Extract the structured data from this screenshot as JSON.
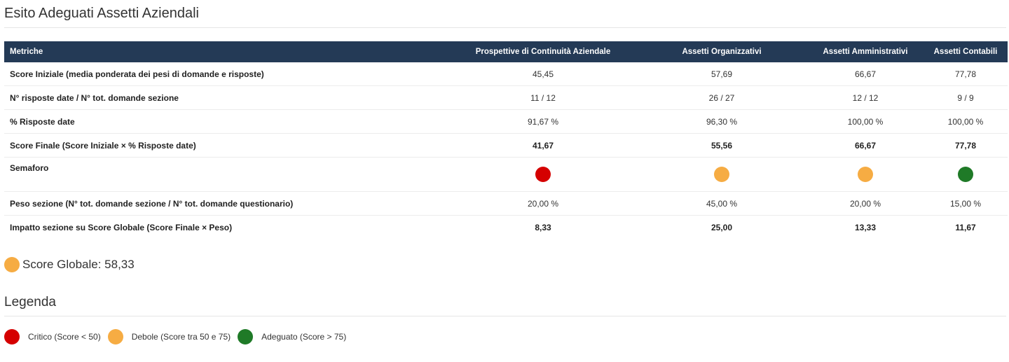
{
  "page": {
    "title": "Esito Adeguati Assetti Aziendali"
  },
  "colors": {
    "critico": "#d50000",
    "debole": "#f6ac43",
    "adeguato": "#1f7a27",
    "header_bg": "#243a56"
  },
  "table": {
    "headers": [
      "Metriche",
      "Prospettive di Continuità Aziendale",
      "Assetti Organizzativi",
      "Assetti Amministrativi",
      "Assetti Contabili"
    ],
    "rows": [
      {
        "label": "Score Iniziale (media ponderata dei pesi di domande e risposte)",
        "values": [
          "45,45",
          "57,69",
          "66,67",
          "77,78"
        ]
      },
      {
        "label": "N° risposte date / N° tot. domande sezione",
        "values": [
          "11 / 12",
          "26 / 27",
          "12 / 12",
          "9 / 9"
        ]
      },
      {
        "label": "% Risposte date",
        "values": [
          "91,67 %",
          "96,30 %",
          "100,00 %",
          "100,00 %"
        ]
      },
      {
        "label": "Score Finale (Score Iniziale × % Risposte date)",
        "values": [
          "41,67",
          "55,56",
          "66,67",
          "77,78"
        ]
      },
      {
        "label": "Semaforo",
        "status": [
          "critico",
          "debole",
          "debole",
          "adeguato"
        ]
      },
      {
        "label": "Peso sezione (N° tot. domande sezione / N° tot. domande questionario)",
        "values": [
          "20,00 %",
          "45,00 %",
          "20,00 %",
          "15,00 %"
        ]
      },
      {
        "label": "Impatto sezione su Score Globale (Score Finale × Peso)",
        "values": [
          "8,33",
          "25,00",
          "13,33",
          "11,67"
        ]
      }
    ]
  },
  "global_score": {
    "text": "Score Globale: 58,33",
    "status": "debole"
  },
  "legend": {
    "title": "Legenda",
    "items": [
      {
        "label": "Critico (Score < 50)",
        "status": "critico"
      },
      {
        "label": "Debole (Score tra 50 e 75)",
        "status": "debole"
      },
      {
        "label": "Adeguato (Score > 75)",
        "status": "adeguato"
      }
    ]
  }
}
